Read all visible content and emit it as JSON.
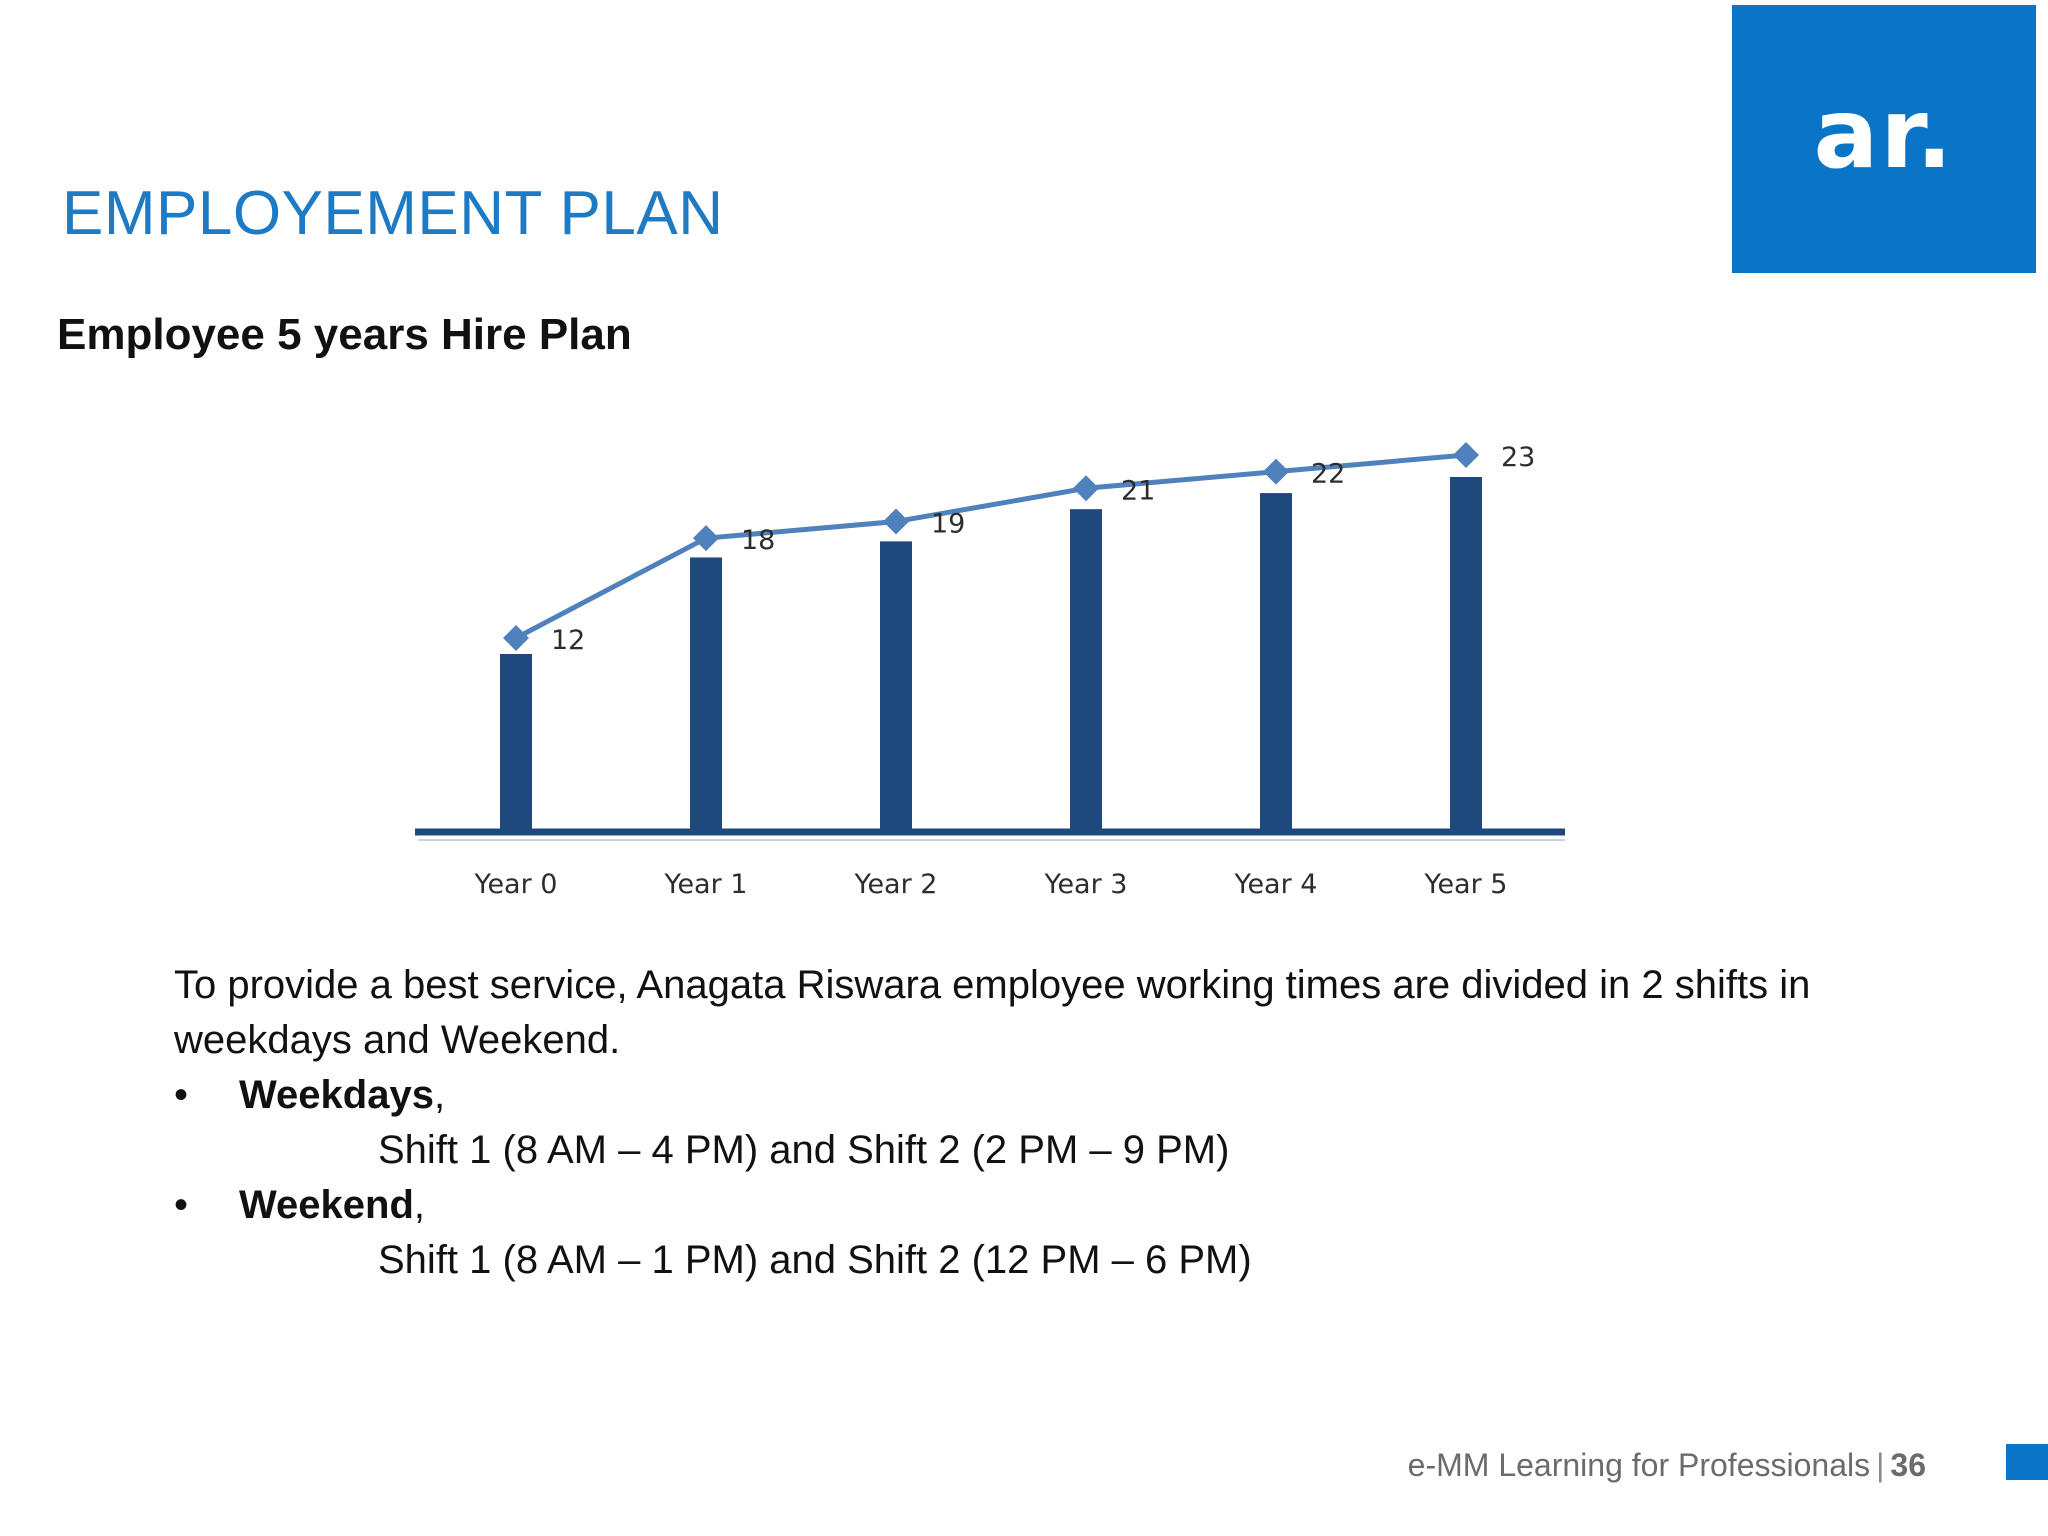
{
  "slide": {
    "title": "EMPLOYEMENT PLAN",
    "subtitle": "Employee 5 years Hire Plan",
    "logo_text": "ar."
  },
  "body": {
    "intro": "To provide a best service, Anagata Riswara employee working times are divided in 2 shifts in weekdays and Weekend.",
    "bullet_symbol": "•",
    "bullets": [
      {
        "label": "Weekdays",
        "suffix": ",",
        "detail": "Shift 1 (8 AM – 4 PM) and Shift 2 (2 PM – 9 PM)"
      },
      {
        "label": "Weekend",
        "suffix": ",",
        "detail": "Shift 1 (8 AM – 1 PM) and Shift 2 (12 PM – 6 PM)"
      }
    ]
  },
  "footer": {
    "text": "e-MM Learning for Professionals",
    "separator": "|",
    "page": "36"
  },
  "colors": {
    "accent_blue": "#0a74c7",
    "title_blue": "#1f7ac4",
    "bar_color": "#1f497d",
    "line_color": "#4f81bd"
  },
  "chart_data": {
    "type": "bar",
    "categories": [
      "Year 0",
      "Year 1",
      "Year 2",
      "Year 3",
      "Year 4",
      "Year 5"
    ],
    "series": [
      {
        "type": "bar",
        "values": [
          12,
          18,
          19,
          21,
          22,
          23
        ]
      },
      {
        "type": "line",
        "marker": "diamond",
        "values": [
          12,
          18,
          19,
          21,
          22,
          23
        ]
      }
    ],
    "data_labels": [
      "12",
      "18",
      "19",
      "21",
      "22",
      "23"
    ],
    "title": "",
    "xlabel": "",
    "ylabel": "",
    "ylim": [
      0,
      25
    ],
    "grid": false,
    "legend": "none"
  }
}
